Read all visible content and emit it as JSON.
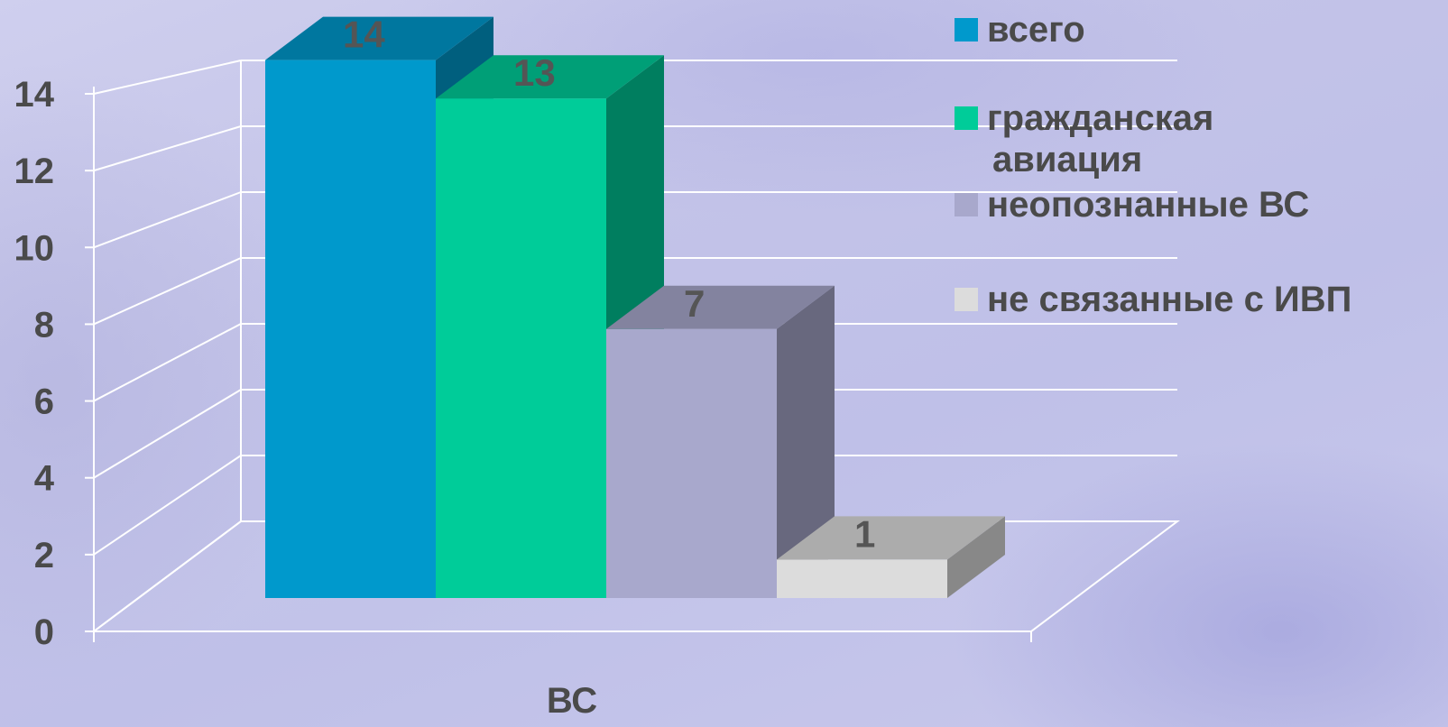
{
  "chart_data": {
    "type": "bar",
    "categories": [
      "ВС"
    ],
    "series": [
      {
        "name": "всего",
        "values": [
          14
        ],
        "color": "#0099cc"
      },
      {
        "name": "гражданская авиация",
        "values": [
          13
        ],
        "color": "#00cc99"
      },
      {
        "name": "неопознанные ВС",
        "values": [
          7
        ],
        "color": "#a8a8cc"
      },
      {
        "name": "не связанные с ИВП",
        "values": [
          1
        ],
        "color": "#dcdcdc"
      }
    ],
    "y_ticks": [
      "0",
      "2",
      "4",
      "6",
      "8",
      "10",
      "12",
      "14"
    ],
    "ylim": [
      0,
      14
    ],
    "grid": true,
    "three_d": true,
    "legend_position": "right"
  }
}
